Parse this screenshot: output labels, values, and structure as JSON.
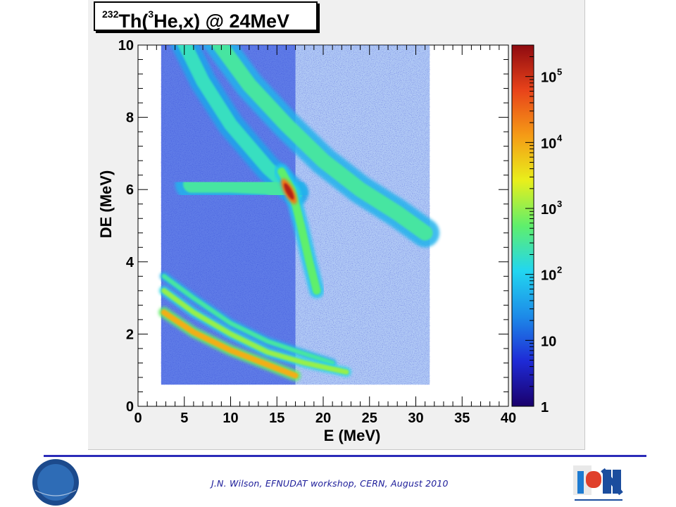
{
  "chart_data": {
    "type": "heatmap",
    "title": {
      "sup": "232",
      "main1": "Th(",
      "sup2": "3",
      "main2": "He,x) @ 24MeV"
    },
    "xlabel": "E (MeV)",
    "ylabel": "DE (MeV)",
    "xlim": [
      0,
      40
    ],
    "ylim": [
      0,
      10
    ],
    "x_ticks": [
      "0",
      "5",
      "10",
      "15",
      "20",
      "25",
      "30",
      "35",
      "40"
    ],
    "y_ticks": [
      "0",
      "2",
      "4",
      "6",
      "8",
      "10"
    ],
    "colorbar": {
      "scale": "log",
      "range": [
        1,
        300000
      ],
      "labels": [
        {
          "value": 1,
          "text": "1"
        },
        {
          "value": 10,
          "text": "10"
        },
        {
          "value": 100,
          "text": "10",
          "sup": "2"
        },
        {
          "value": 1000,
          "text": "10",
          "sup": "3"
        },
        {
          "value": 10000,
          "text": "10",
          "sup": "4"
        },
        {
          "value": 100000,
          "text": "10",
          "sup": "5"
        }
      ],
      "colors": [
        "#1a006b",
        "#1e2ad6",
        "#1d8be8",
        "#22d6f0",
        "#5fef6c",
        "#e9ef1b",
        "#f59b16",
        "#e8431a",
        "#8e0a10"
      ]
    },
    "background_region": {
      "x": [
        2.5,
        31.5
      ],
      "y": [
        0.6,
        10.3
      ],
      "level": 0.2
    },
    "bands": [
      {
        "name": "",
        "points": [
          [
            4.5,
            10.3
          ],
          [
            7,
            9.0
          ],
          [
            10,
            7.8
          ],
          [
            14,
            6.6
          ],
          [
            17,
            5.9
          ]
        ],
        "width": 0.38,
        "level": 0.42
      },
      {
        "name": "",
        "points": [
          [
            8,
            10.3
          ],
          [
            12,
            8.9
          ],
          [
            16,
            7.8
          ],
          [
            20,
            6.8
          ],
          [
            24,
            6.0
          ],
          [
            28,
            5.35
          ],
          [
            31,
            4.8
          ]
        ],
        "width": 0.42,
        "level": 0.45
      },
      {
        "name": "",
        "points": [
          [
            5.8,
            6.15
          ],
          [
            10,
            6.15
          ],
          [
            14,
            6.1
          ],
          [
            16.5,
            5.9
          ]
        ],
        "width": 0.48,
        "level": 0.45
      },
      {
        "name": "",
        "points": [
          [
            15.5,
            6.5
          ],
          [
            16.6,
            6.0
          ],
          [
            17.6,
            5.0
          ],
          [
            18.5,
            4.0
          ],
          [
            19.3,
            3.2
          ]
        ],
        "width": 0.22,
        "level": 0.5
      },
      {
        "name": "",
        "points": [
          [
            16.6,
            10.0
          ],
          [
            16.6,
            0.8
          ]
        ],
        "width": 0.12,
        "level": 0.32
      },
      {
        "name": "",
        "points": [
          [
            2.8,
            3.6
          ],
          [
            6,
            3.0
          ],
          [
            10,
            2.3
          ],
          [
            14,
            1.8
          ],
          [
            18,
            1.45
          ],
          [
            21,
            1.2
          ]
        ],
        "width": 0.12,
        "level": 0.45
      },
      {
        "name": "",
        "points": [
          [
            2.8,
            3.2
          ],
          [
            6,
            2.6
          ],
          [
            10,
            2.0
          ],
          [
            14,
            1.5
          ],
          [
            18,
            1.2
          ],
          [
            22.5,
            0.95
          ]
        ],
        "width": 0.14,
        "level": 0.55
      },
      {
        "name": "",
        "points": [
          [
            2.8,
            2.6
          ],
          [
            6,
            2.05
          ],
          [
            10,
            1.55
          ],
          [
            14,
            1.15
          ],
          [
            17,
            0.85
          ]
        ],
        "width": 0.16,
        "level": 0.72
      }
    ],
    "hotspot": {
      "x": 16.3,
      "y": 5.95,
      "level": 0.95
    }
  },
  "footer": {
    "text": "J.N. Wilson,  EFNUDAT workshop, CERN, August 2010"
  },
  "logos": {
    "left": "cnrs",
    "right_top": "IPN",
    "right_bottom": "orsay"
  }
}
